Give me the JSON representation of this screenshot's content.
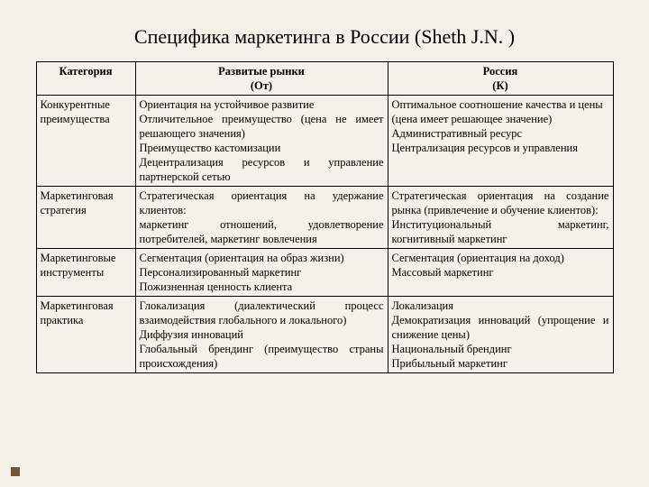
{
  "title": "Специфика маркетинга в России (Sheth J.N. )",
  "header": {
    "c1a": "Категория",
    "c2a": "Развитые рынки",
    "c2b": "(От)",
    "c3a": "Россия",
    "c3b": "(К)"
  },
  "rows": [
    {
      "cat": "Конкурентные преимущества",
      "dev": "Ориентация на устойчивое развитие\nОтличительное преимущество (цена не имеет решающего значения)\nПреимущество кастомизации\nДецентрализация ресурсов и управление партнерской сетью",
      "rus": "Оптимальное соотношение качества и цены (цена имеет решающее значение)\nАдминистративный ресурс\nЦентрализация ресурсов и управления"
    },
    {
      "cat": "Маркетинговая стратегия",
      "dev": "Стратегическая ориентация на удержание клиентов:\nмаркетинг отношений, удовлетворение потребителей, маркетинг вовлечения",
      "rus": "Стратегическая ориентация на создание рынка (привлечение и обучение клиентов):\nИнституциональный маркетинг, когнитивный маркетинг"
    },
    {
      "cat": "Маркетинговые инструменты",
      "dev": "Сегментация (ориентация на образ жизни)\nПерсонализированный маркетинг\nПожизненная ценность клиента",
      "rus": "Сегментация (ориентация на доход)\nМассовый маркетинг"
    },
    {
      "cat": "Маркетинговая практика",
      "dev": "Глокализация (диалектический процесс взаимодействия глобального и локального)\nДиффузия инноваций\nГлобальный брендинг (преимущество страны происхождения)",
      "rus": "Локализация\nДемократизация инноваций (упрощение и снижение цены)\nНациональный брендинг\nПрибыльный маркетинг"
    }
  ],
  "colors": {
    "bg": "#f5f1e8",
    "border": "#000000",
    "bullet": "#6b5a3a"
  }
}
